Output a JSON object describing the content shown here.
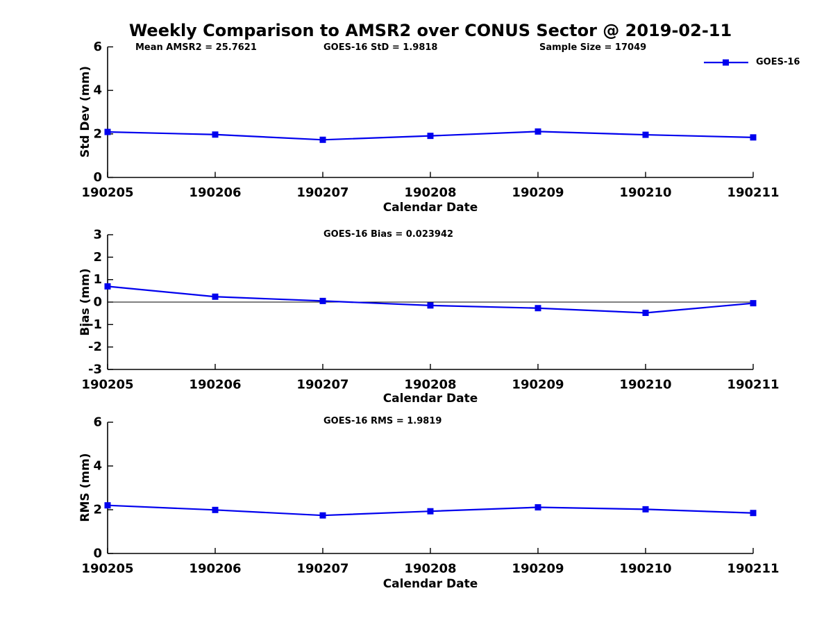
{
  "title": "Weekly Comparison to AMSR2 over CONUS Sector @ 2019-02-11",
  "colors": {
    "line": "#0000ee",
    "axis": "#000000",
    "text": "#000000"
  },
  "legend": {
    "label": "GOES-16"
  },
  "stats": {
    "mean_amsr2": 25.7621,
    "goes16_std": 1.9818,
    "sample_size": 17049,
    "goes16_bias": 0.023942,
    "goes16_rms": 1.9819
  },
  "chart_data": [
    {
      "type": "line",
      "name": "stddev",
      "ylabel": "Std Dev (mm)",
      "xlabel": "Calendar Date",
      "x": [
        "190205",
        "190206",
        "190207",
        "190208",
        "190209",
        "190210",
        "190211"
      ],
      "series": [
        {
          "name": "GOES-16",
          "values": [
            2.09,
            1.97,
            1.73,
            1.91,
            2.11,
            1.96,
            1.84
          ]
        }
      ],
      "ylim": [
        0,
        6
      ],
      "yticks": [
        0,
        2,
        4,
        6
      ],
      "grid": false,
      "zero_line": false,
      "annotations": [
        "Mean AMSR2 = 25.7621",
        "GOES-16 StD = 1.9818",
        "Sample Size = 17049"
      ],
      "legend": {
        "entries": [
          "GOES-16"
        ],
        "position": "outside-top-right"
      }
    },
    {
      "type": "line",
      "name": "bias",
      "ylabel": "Bias (mm)",
      "xlabel": "Calendar Date",
      "x": [
        "190205",
        "190206",
        "190207",
        "190208",
        "190209",
        "190210",
        "190211"
      ],
      "series": [
        {
          "name": "GOES-16",
          "values": [
            0.7,
            0.24,
            0.05,
            -0.15,
            -0.27,
            -0.48,
            -0.05
          ]
        }
      ],
      "ylim": [
        -3,
        3
      ],
      "yticks": [
        -3,
        -2,
        -1,
        0,
        1,
        2,
        3
      ],
      "grid": false,
      "zero_line": true,
      "annotations": [
        "GOES-16 Bias  = 0.023942"
      ]
    },
    {
      "type": "line",
      "name": "rms",
      "ylabel": "RMS (mm)",
      "xlabel": "Calendar Date",
      "x": [
        "190205",
        "190206",
        "190207",
        "190208",
        "190209",
        "190210",
        "190211"
      ],
      "series": [
        {
          "name": "GOES-16",
          "values": [
            2.2,
            1.99,
            1.74,
            1.93,
            2.11,
            2.02,
            1.85
          ]
        }
      ],
      "ylim": [
        0,
        6
      ],
      "yticks": [
        0,
        2,
        4,
        6
      ],
      "grid": false,
      "zero_line": false,
      "annotations": [
        "GOES-16 RMS = 1.9819"
      ]
    }
  ]
}
